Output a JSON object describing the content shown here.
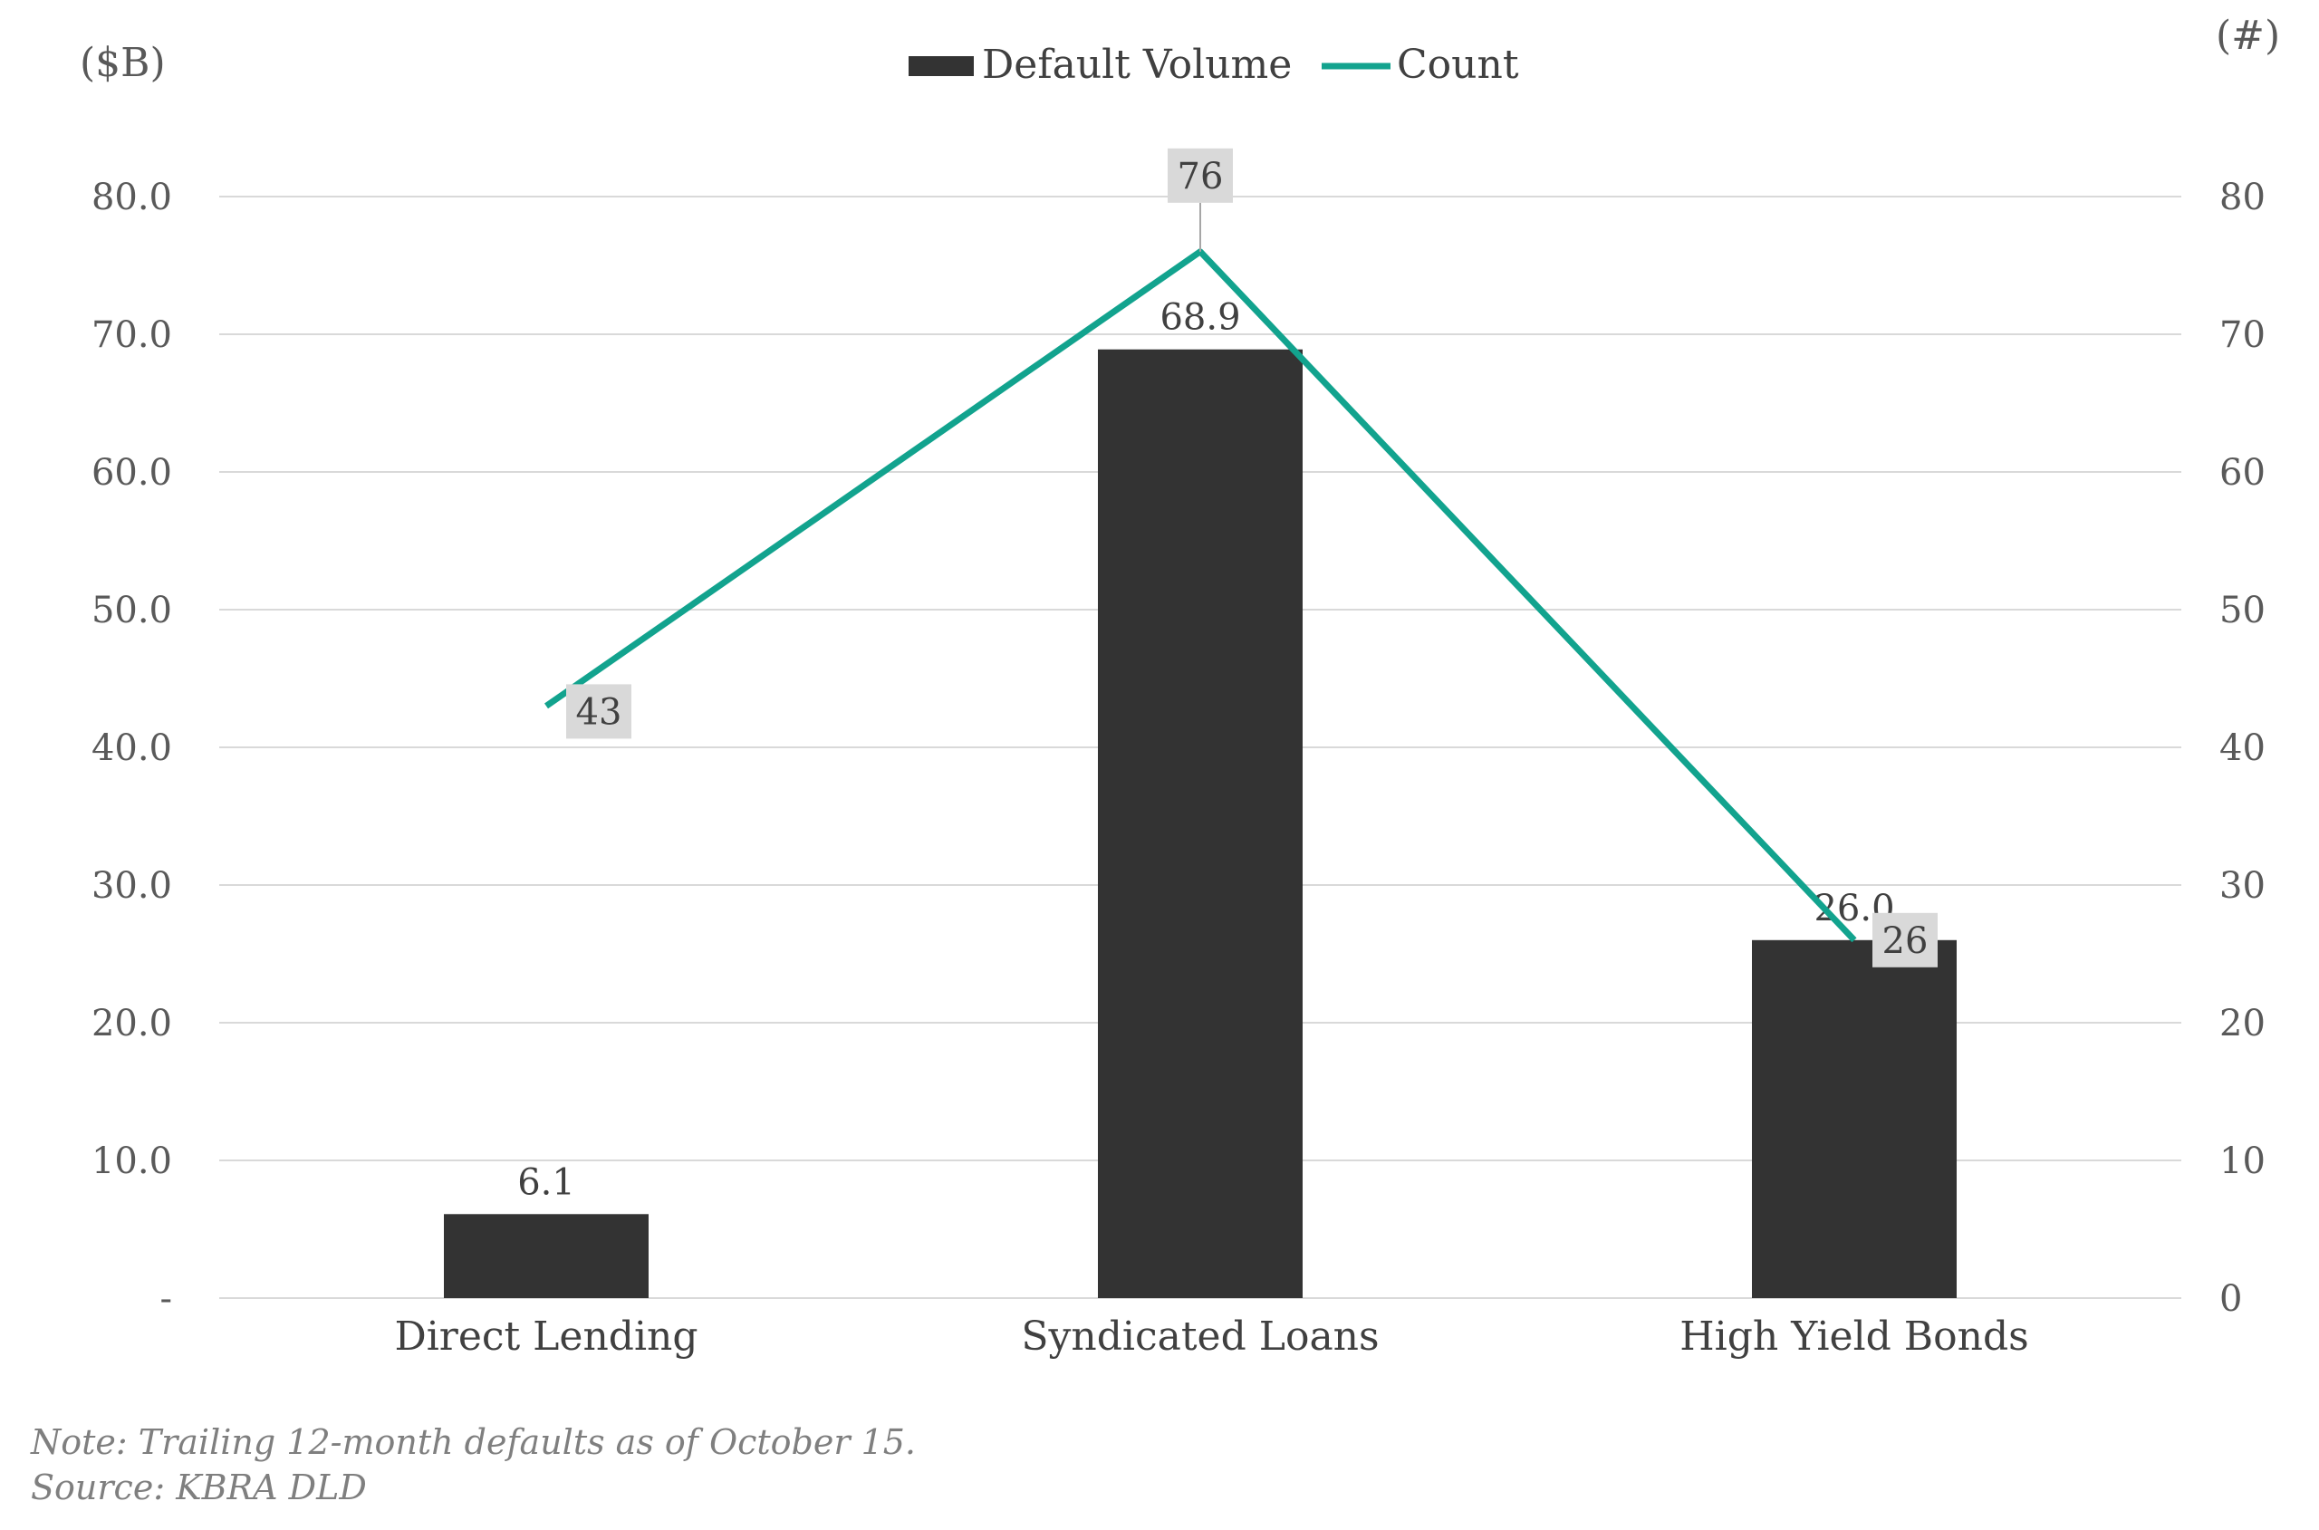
{
  "chart_data": {
    "type": "bar",
    "categories": [
      "Direct Lending",
      "Syndicated Loans",
      "High Yield Bonds"
    ],
    "series": [
      {
        "name": "Default Volume",
        "type": "bar",
        "axis": "left",
        "values": [
          6.1,
          68.9,
          26.0
        ],
        "labels": [
          "6.1",
          "68.9",
          "26.0"
        ]
      },
      {
        "name": "Count",
        "type": "line",
        "axis": "right",
        "values": [
          43,
          76,
          26
        ],
        "labels": [
          "43",
          "76",
          "26"
        ]
      }
    ],
    "left_axis": {
      "unit_label": "($B)",
      "ylim": [
        0,
        80
      ],
      "ticks": [
        0,
        10,
        20,
        30,
        40,
        50,
        60,
        70,
        80
      ],
      "tick_labels": [
        "-",
        "10.0",
        "20.0",
        "30.0",
        "40.0",
        "50.0",
        "60.0",
        "70.0",
        "80.0"
      ]
    },
    "right_axis": {
      "unit_label": "(#)",
      "ylim": [
        0,
        80
      ],
      "ticks": [
        0,
        10,
        20,
        30,
        40,
        50,
        60,
        70,
        80
      ],
      "tick_labels": [
        "0",
        "10",
        "20",
        "30",
        "40",
        "50",
        "60",
        "70",
        "80"
      ]
    },
    "legend": {
      "position": "top-center",
      "entries": [
        "Default Volume",
        "Count"
      ]
    },
    "grid": true,
    "colors": {
      "bar": "#333333",
      "line": "#12a38e",
      "grid": "#d9d9d9",
      "count_label_bg": "#d9d9d9"
    }
  },
  "notes": {
    "note": "Note: Trailing 12-month defaults as of October 15.",
    "source": "Source: KBRA DLD"
  }
}
